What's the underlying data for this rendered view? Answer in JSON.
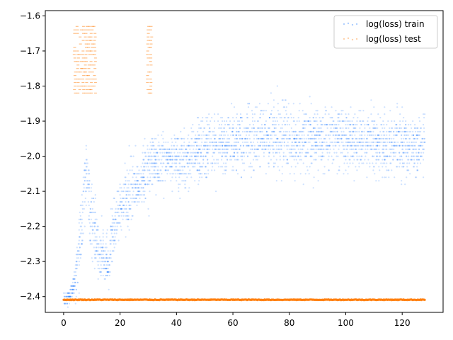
{
  "chart_data": {
    "type": "scatter",
    "title": "",
    "xlabel": "",
    "ylabel": "",
    "xlim": [
      -6.5,
      134.5
    ],
    "ylim": [
      -2.445,
      -1.585
    ],
    "x_ticks": [
      0,
      20,
      40,
      60,
      80,
      100,
      120
    ],
    "y_ticks": [
      -2.4,
      -2.3,
      -2.2,
      -2.1,
      -2.0,
      -1.9,
      -1.8,
      -1.7,
      -1.6
    ],
    "x_tick_labels": [
      "0",
      "20",
      "40",
      "60",
      "80",
      "100",
      "120"
    ],
    "y_tick_labels": [
      "−2.4",
      "−2.3",
      "−2.2",
      "−2.1",
      "−2.0",
      "−1.9",
      "−1.8",
      "−1.7",
      "−1.6"
    ],
    "grid": false,
    "legend_position": "top-right",
    "series": [
      {
        "name": "log(loss) train",
        "color": "#1a75ff",
        "marker": "dot",
        "x": [
          0,
          2,
          4,
          5,
          6,
          7,
          8,
          9,
          10,
          11,
          12,
          13,
          14,
          15,
          16,
          17,
          18,
          20,
          22,
          24,
          26,
          28,
          29,
          30,
          32,
          34,
          36,
          38,
          40,
          45,
          50,
          55,
          60,
          65,
          70,
          75,
          80,
          85,
          90,
          95,
          100,
          105,
          110,
          115,
          120,
          125,
          128
        ],
        "y": [
          -2.41,
          -2.4,
          -2.36,
          -2.3,
          -2.22,
          -2.15,
          -2.05,
          -2.12,
          -2.18,
          -2.22,
          -2.26,
          -2.28,
          -2.29,
          -2.3,
          -2.32,
          -2.22,
          -2.2,
          -2.15,
          -2.12,
          -2.1,
          -2.08,
          -2.07,
          -2.06,
          -2.03,
          -2.02,
          -2.02,
          -2.02,
          -2.01,
          -2.02,
          -2.0,
          -1.98,
          -1.97,
          -1.96,
          -1.95,
          -1.95,
          -1.95,
          -1.95,
          -1.95,
          -1.95,
          -1.95,
          -1.95,
          -1.96,
          -1.96,
          -1.97,
          -1.97,
          -1.97,
          -1.97
        ],
        "spread": [
          0.01,
          0.02,
          0.03,
          0.06,
          0.09,
          0.1,
          0.09,
          0.09,
          0.1,
          0.09,
          0.07,
          0.06,
          0.06,
          0.07,
          0.08,
          0.07,
          0.08,
          0.07,
          0.07,
          0.07,
          0.07,
          0.07,
          0.07,
          0.07,
          0.06,
          0.06,
          0.06,
          0.06,
          0.07,
          0.07,
          0.07,
          0.07,
          0.07,
          0.07,
          0.07,
          0.07,
          0.07,
          0.07,
          0.07,
          0.07,
          0.07,
          0.07,
          0.07,
          0.07,
          0.07,
          0.07,
          0.07
        ]
      },
      {
        "name": "log(loss) test",
        "color": "#ff7f0e",
        "marker": "dot",
        "baseline": -2.409,
        "x_range": [
          0,
          128
        ],
        "outlier_x": [
          4,
          5,
          6,
          7,
          8,
          9,
          10,
          11,
          30,
          31
        ],
        "outlier_y_range": [
          -1.82,
          -1.63
        ]
      }
    ]
  }
}
